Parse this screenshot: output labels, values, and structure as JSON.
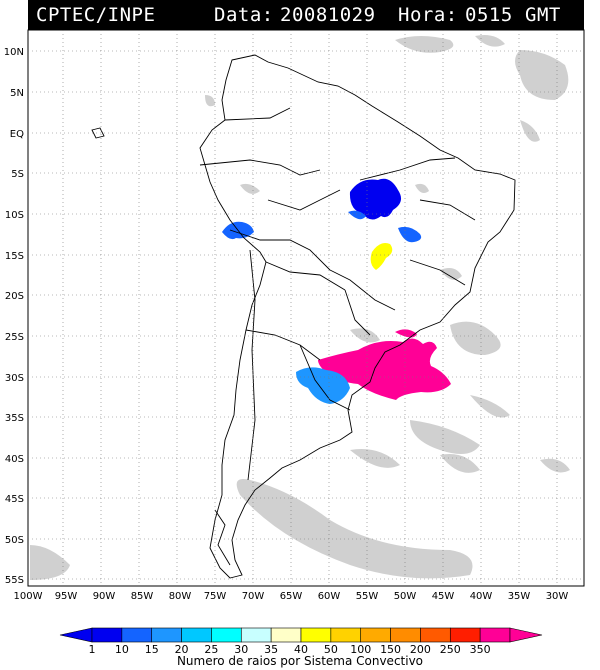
{
  "header": {
    "source": "CPTEC/INPE",
    "date_label": "Data:",
    "date": "20081029",
    "time_label": "Hora:",
    "time": "0515",
    "timezone": "GMT"
  },
  "axes": {
    "lat_labels": [
      "10N",
      "5N",
      "EQ",
      "5S",
      "10S",
      "15S",
      "20S",
      "25S",
      "30S",
      "35S",
      "40S",
      "45S",
      "50S",
      "55S"
    ],
    "lon_labels": [
      "100W",
      "95W",
      "90W",
      "85W",
      "80W",
      "75W",
      "70W",
      "65W",
      "60W",
      "55W",
      "50W",
      "45W",
      "40W",
      "35W",
      "30W"
    ],
    "lat_range": [
      -56,
      12
    ],
    "lon_range": [
      -100,
      -27
    ],
    "grid": "dotted"
  },
  "legend": {
    "ticks": [
      "1",
      "10",
      "15",
      "20",
      "25",
      "30",
      "35",
      "40",
      "50",
      "100",
      "150",
      "200",
      "250",
      "350"
    ],
    "colors": [
      "#0000f0",
      "#1464ff",
      "#1e96ff",
      "#00c8ff",
      "#00ffff",
      "#c8ffff",
      "#ffffc8",
      "#ffff00",
      "#ffd200",
      "#ffaa00",
      "#ff8c00",
      "#ff5a00",
      "#ff1e00",
      "#ff0096"
    ],
    "caption": "Numero de raios por Sistema Convectivo"
  },
  "colors": {
    "background": "#ffffff",
    "cloud": "#c8c8c8",
    "coast": "#000000"
  }
}
